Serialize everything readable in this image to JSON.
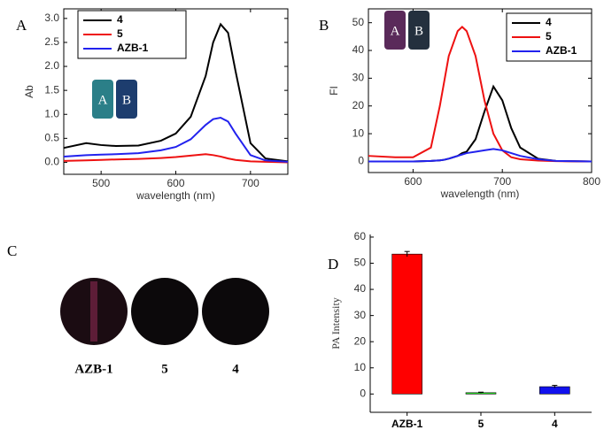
{
  "chart_data": [
    {
      "type": "line",
      "panel": "A",
      "xlabel": "wavelength (nm)",
      "ylabel": "Ab",
      "x": [
        450,
        480,
        500,
        520,
        550,
        580,
        600,
        620,
        640,
        650,
        660,
        670,
        680,
        700,
        720,
        750
      ],
      "series": [
        {
          "name": "4",
          "color": "#000000",
          "values": [
            0.3,
            0.4,
            0.36,
            0.34,
            0.35,
            0.45,
            0.6,
            0.95,
            1.8,
            2.5,
            2.88,
            2.7,
            1.9,
            0.4,
            0.08,
            0.02
          ]
        },
        {
          "name": "5",
          "color": "#ee1111",
          "values": [
            0.03,
            0.04,
            0.05,
            0.06,
            0.07,
            0.09,
            0.11,
            0.14,
            0.17,
            0.15,
            0.12,
            0.08,
            0.05,
            0.02,
            0.01,
            0.0
          ]
        },
        {
          "name": "AZB-1",
          "color": "#2222ee",
          "values": [
            0.12,
            0.15,
            0.16,
            0.17,
            0.19,
            0.25,
            0.32,
            0.48,
            0.78,
            0.9,
            0.93,
            0.85,
            0.6,
            0.15,
            0.04,
            0.01
          ]
        }
      ],
      "xlim": [
        450,
        750
      ],
      "xticks": [
        500,
        600,
        700
      ],
      "ylim": [
        -0.25,
        3.2
      ],
      "yticks": [
        {
          "value": 0,
          "label": "0.0"
        },
        0.5,
        {
          "value": 1,
          "label": "1.0"
        },
        1.5,
        {
          "value": 2,
          "label": "2.0"
        },
        2.5,
        {
          "value": 3,
          "label": "3.0"
        }
      ],
      "inset": [
        "A",
        "B"
      ]
    },
    {
      "type": "line",
      "panel": "B",
      "xlabel": "wavelength (nm)",
      "ylabel": "FI",
      "x": [
        550,
        580,
        600,
        620,
        630,
        635,
        640,
        650,
        655,
        660,
        670,
        680,
        690,
        700,
        710,
        720,
        740,
        760,
        800
      ],
      "series": [
        {
          "name": "4",
          "color": "#000000",
          "values": [
            0,
            0,
            0,
            0.2,
            0.4,
            0.6,
            1,
            2,
            3,
            3.5,
            8,
            18,
            27,
            22,
            12,
            5,
            1,
            0.2,
            0
          ]
        },
        {
          "name": "5",
          "color": "#ee1111",
          "values": [
            2,
            1.5,
            1.5,
            5,
            20,
            29,
            38,
            47,
            48.5,
            47,
            38,
            22,
            10,
            4,
            1.5,
            0.8,
            0.3,
            0.1,
            0
          ]
        },
        {
          "name": "AZB-1",
          "color": "#2222ee",
          "values": [
            0,
            0,
            0,
            0.2,
            0.4,
            0.6,
            1,
            2,
            2.5,
            3,
            3.5,
            4,
            4.5,
            4,
            3,
            2,
            0.8,
            0.2,
            0
          ]
        }
      ],
      "xlim": [
        550,
        800
      ],
      "xticks": [
        600,
        700,
        800
      ],
      "ylim": [
        -4,
        55
      ],
      "yticks": [
        0,
        10,
        20,
        30,
        40,
        50
      ],
      "inset": [
        "A",
        "B"
      ]
    },
    {
      "type": "bar",
      "panel": "D",
      "ylabel": "PA Intensity",
      "categories": [
        "AZB-1",
        "5",
        "4"
      ],
      "values": [
        53.5,
        0.5,
        2.8
      ],
      "errors": [
        1,
        0.2,
        0.5
      ],
      "colors": [
        "#ff0000",
        "#22ee22",
        "#1111ee"
      ],
      "ylim": [
        -7,
        61
      ],
      "yticks": [
        0,
        10,
        20,
        30,
        40,
        50,
        60
      ]
    }
  ],
  "panel_c": {
    "panel": "C",
    "samples": [
      "AZB-1",
      "5",
      "4"
    ]
  }
}
